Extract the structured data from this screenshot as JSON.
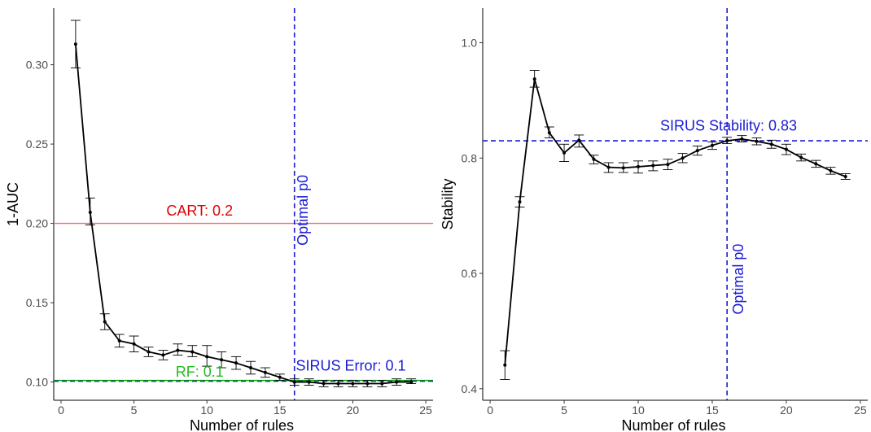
{
  "chart_data": [
    {
      "type": "line",
      "id": "left",
      "xlabel": "Number of rules",
      "ylabel": "1-AUC",
      "xlim": [
        -0.5,
        25.5
      ],
      "ylim": [
        0.0885,
        0.3357
      ],
      "xticks": [
        0,
        5,
        10,
        15,
        20,
        25
      ],
      "yticks": [
        0.1,
        0.15,
        0.2,
        0.25,
        0.3
      ],
      "ytick_labels": [
        "0.10",
        "0.15",
        "0.20",
        "0.25",
        "0.30"
      ],
      "grid": false,
      "series": [
        {
          "x": [
            1,
            2,
            3,
            4,
            5,
            6,
            7,
            8,
            9,
            10,
            11,
            12,
            13,
            14,
            15,
            16,
            17,
            18,
            19,
            20,
            21,
            22,
            23,
            24
          ],
          "y": [
            0.313,
            0.207,
            0.138,
            0.126,
            0.124,
            0.119,
            0.117,
            0.12,
            0.119,
            0.116,
            0.114,
            0.112,
            0.109,
            0.106,
            0.103,
            0.1,
            0.1,
            0.099,
            0.099,
            0.099,
            0.099,
            0.099,
            0.1,
            0.1
          ],
          "err_low": [
            0.298,
            0.199,
            0.133,
            0.122,
            0.119,
            0.116,
            0.114,
            0.117,
            0.116,
            0.11,
            0.109,
            0.108,
            0.105,
            0.103,
            0.101,
            0.098,
            0.098,
            0.097,
            0.097,
            0.097,
            0.097,
            0.097,
            0.098,
            0.099
          ],
          "err_high": [
            0.328,
            0.216,
            0.143,
            0.13,
            0.129,
            0.122,
            0.12,
            0.124,
            0.123,
            0.123,
            0.119,
            0.116,
            0.113,
            0.109,
            0.105,
            0.102,
            0.102,
            0.101,
            0.101,
            0.101,
            0.101,
            0.101,
            0.102,
            0.102
          ]
        }
      ],
      "reference_lines": [
        {
          "orientation": "h",
          "value": 0.2,
          "color": "#ff6666",
          "dash": false
        },
        {
          "orientation": "h",
          "value": 0.101,
          "color": "#00aa00",
          "dash": false
        },
        {
          "orientation": "h",
          "value": 0.1005,
          "color": "#2a3a9a",
          "dash": true
        },
        {
          "orientation": "v",
          "value": 16,
          "color": "#1a1ad6",
          "dash": true
        }
      ],
      "annotations": [
        {
          "text": "CART:  0.2",
          "x": 9.5,
          "y": 0.205,
          "color": "#e00000",
          "rotate": 0,
          "anchor": "middle"
        },
        {
          "text": "RF:  0.1",
          "x": 9.5,
          "y": 0.1035,
          "color": "#22bb22",
          "rotate": 0,
          "anchor": "middle"
        },
        {
          "text": "SIRUS Error: 0.1",
          "x": 16.1,
          "y": 0.1072,
          "color": "#1a1ad6",
          "rotate": 0,
          "anchor": "start"
        },
        {
          "text": "Optimal p0",
          "x": 16.9,
          "y": 0.186,
          "color": "#1a1ad6",
          "rotate": -90,
          "anchor": "start"
        }
      ]
    },
    {
      "type": "line",
      "id": "right",
      "xlabel": "Number of rules",
      "ylabel": "Stability",
      "xlim": [
        -0.5,
        25.5
      ],
      "ylim": [
        0.38,
        1.06
      ],
      "xticks": [
        0,
        5,
        10,
        15,
        20,
        25
      ],
      "yticks": [
        0.4,
        0.6,
        0.8,
        1.0
      ],
      "ytick_labels": [
        "0.4",
        "0.6",
        "0.8",
        "1.0"
      ],
      "grid": false,
      "series": [
        {
          "x": [
            1,
            2,
            3,
            4,
            5,
            6,
            7,
            8,
            9,
            10,
            11,
            12,
            13,
            14,
            15,
            16,
            17,
            18,
            19,
            20,
            21,
            22,
            23,
            24
          ],
          "y": [
            0.441,
            0.724,
            0.937,
            0.844,
            0.809,
            0.831,
            0.798,
            0.784,
            0.783,
            0.785,
            0.787,
            0.789,
            0.8,
            0.813,
            0.822,
            0.83,
            0.833,
            0.829,
            0.824,
            0.815,
            0.801,
            0.79,
            0.778,
            0.768
          ],
          "err_low": [
            0.416,
            0.715,
            0.923,
            0.835,
            0.794,
            0.819,
            0.79,
            0.775,
            0.775,
            0.774,
            0.778,
            0.78,
            0.792,
            0.805,
            0.815,
            0.825,
            0.828,
            0.823,
            0.817,
            0.806,
            0.795,
            0.784,
            0.772,
            0.763
          ],
          "err_high": [
            0.466,
            0.733,
            0.952,
            0.854,
            0.824,
            0.84,
            0.805,
            0.792,
            0.792,
            0.795,
            0.795,
            0.798,
            0.808,
            0.821,
            0.828,
            0.836,
            0.839,
            0.835,
            0.831,
            0.824,
            0.807,
            0.796,
            0.784,
            0.773
          ]
        }
      ],
      "reference_lines": [
        {
          "orientation": "h",
          "value": 0.83,
          "color": "#1a1ad6",
          "dash": true
        },
        {
          "orientation": "v",
          "value": 16,
          "color": "#1a1ad6",
          "dash": true
        }
      ],
      "annotations": [
        {
          "text": "SIRUS Stability: 0.83",
          "x": 16.1,
          "y": 0.848,
          "color": "#1a1ad6",
          "rotate": 0,
          "anchor": "middle"
        },
        {
          "text": "Optimal p0",
          "x": 17.1,
          "y": 0.59,
          "color": "#1a1ad6",
          "rotate": -90,
          "anchor": "middle"
        }
      ]
    }
  ]
}
